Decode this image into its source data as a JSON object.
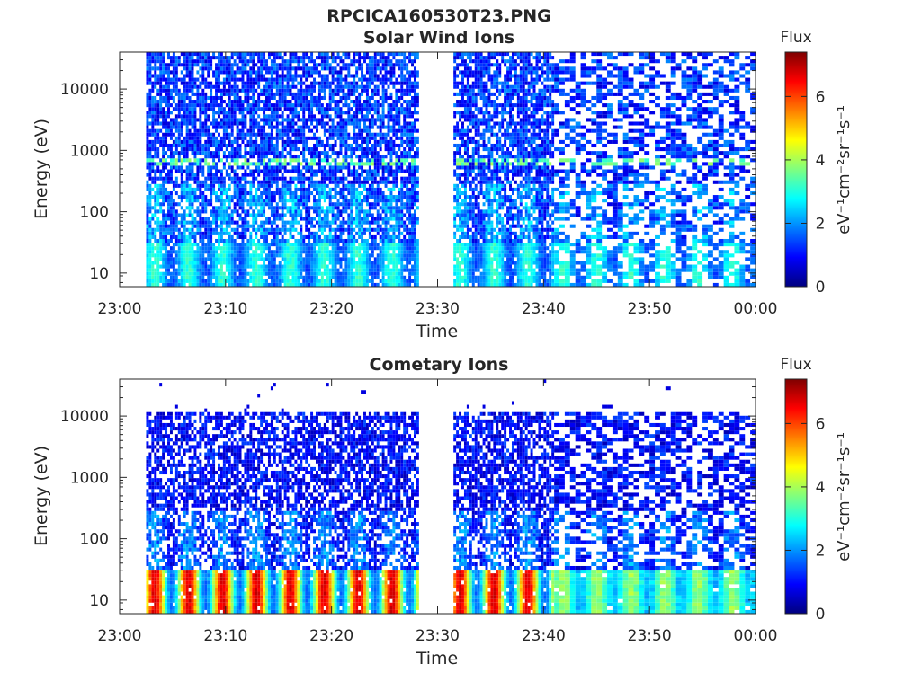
{
  "figure_title": "RPCICA160530T23.PNG",
  "palette": [
    "#00007f",
    "#0000ff",
    "#007fff",
    "#00ffff",
    "#7fff7f",
    "#ffff00",
    "#ff7f00",
    "#ff0000",
    "#7f0000"
  ],
  "chart_data": [
    {
      "type": "heatmap",
      "title": "Solar Wind Ions",
      "xlabel": "Time",
      "ylabel": "Energy (eV)",
      "x_ticks": [
        "23:00",
        "23:10",
        "23:20",
        "23:30",
        "23:40",
        "23:50",
        "00:00"
      ],
      "x_range_minutes": [
        0,
        60
      ],
      "y_scale": "log",
      "y_ticks": [
        "10",
        "100",
        "1000",
        "10000"
      ],
      "y_tick_values": [
        10,
        100,
        1000,
        10000
      ],
      "y_range": [
        6,
        40000
      ],
      "data_gaps_minutes": [
        [
          0,
          2.3
        ],
        [
          28.2,
          31.3
        ]
      ],
      "colorbar": {
        "title": "Flux",
        "label": "eV⁻¹cm⁻²sr⁻¹s⁻¹",
        "range": [
          0,
          7.4
        ],
        "ticks": [
          "0",
          "2",
          "4",
          "6"
        ],
        "tick_values": [
          0,
          2,
          4,
          6
        ]
      },
      "features": {
        "low_energy_band_eV": [
          6,
          30
        ],
        "low_energy_band_flux": 2.5,
        "proton_peak_eV": 650,
        "proton_peak_flux": 3.5,
        "sparse_after_minute": 41
      }
    },
    {
      "type": "heatmap",
      "title": "Cometary Ions",
      "xlabel": "Time",
      "ylabel": "Energy (eV)",
      "x_ticks": [
        "23:00",
        "23:10",
        "23:20",
        "23:30",
        "23:40",
        "23:50",
        "00:00"
      ],
      "x_range_minutes": [
        0,
        60
      ],
      "y_scale": "log",
      "y_ticks": [
        "10",
        "100",
        "1000",
        "10000"
      ],
      "y_tick_values": [
        10,
        100,
        1000,
        10000
      ],
      "y_range": [
        6,
        40000
      ],
      "data_gaps_minutes": [
        [
          0,
          2.3
        ],
        [
          28.2,
          31.3
        ]
      ],
      "colorbar": {
        "title": "Flux",
        "label": "eV⁻¹cm⁻²sr⁻¹s⁻¹",
        "range": [
          0,
          7.4
        ],
        "ticks": [
          "0",
          "2",
          "4",
          "6"
        ],
        "tick_values": [
          0,
          2,
          4,
          6
        ]
      },
      "features": {
        "low_energy_band_eV": [
          6,
          30
        ],
        "low_energy_band_peak_flux": 6.5,
        "pulse_period_minutes": 3.2,
        "data_cutoff_eV": 11000,
        "sparse_after_minute": 41
      }
    }
  ]
}
